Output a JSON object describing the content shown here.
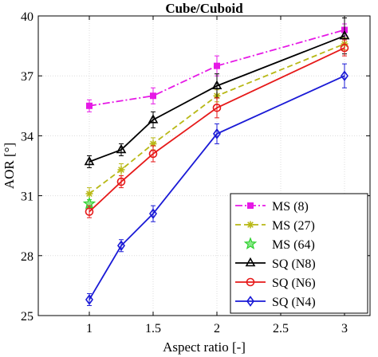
{
  "chart_data": {
    "type": "line",
    "title": "Cube/Cuboid",
    "xlabel": "Aspect ratio [-]",
    "ylabel": "AOR [°]",
    "xlim": [
      0.6,
      3.2
    ],
    "ylim": [
      25,
      40
    ],
    "xticks": [
      1,
      1.5,
      2,
      2.5,
      3
    ],
    "xtick_labels": [
      "1",
      "1.5",
      "2",
      "2.5",
      "3"
    ],
    "yticks": [
      25,
      28,
      31,
      34,
      37,
      40
    ],
    "ytick_labels": [
      "25",
      "28",
      "31",
      "34",
      "37",
      "40"
    ],
    "grid": true,
    "legend_position": "lower-right",
    "series": [
      {
        "name": "MS (8)",
        "color": "#e619e6",
        "dash": "dashdot",
        "marker": "square-filled",
        "x": [
          1,
          1.5,
          2,
          3
        ],
        "y": [
          35.5,
          36.0,
          37.5,
          39.3
        ],
        "err": [
          0.3,
          0.4,
          0.5,
          0.3
        ]
      },
      {
        "name": "MS (27)",
        "color": "#b8b815",
        "dash": "dashed",
        "marker": "asterisk",
        "x": [
          1,
          1.25,
          1.5,
          2,
          3
        ],
        "y": [
          31.1,
          32.3,
          33.6,
          36.0,
          38.6
        ],
        "err": [
          0.3,
          0.3,
          0.3,
          0.3,
          0.3
        ]
      },
      {
        "name": "MS (64)",
        "color": "#2fd12f",
        "dash": "none",
        "marker": "star",
        "x": [
          1
        ],
        "y": [
          30.6
        ],
        "err": [
          0.2
        ]
      },
      {
        "name": "SQ (N8)",
        "color": "#000000",
        "dash": "solid",
        "marker": "triangle",
        "x": [
          1,
          1.25,
          1.5,
          2,
          3
        ],
        "y": [
          32.7,
          33.3,
          34.8,
          36.5,
          39.0
        ],
        "err": [
          0.3,
          0.3,
          0.4,
          0.6,
          0.9
        ]
      },
      {
        "name": "SQ (N6)",
        "color": "#e61919",
        "dash": "solid",
        "marker": "circle",
        "x": [
          1,
          1.25,
          1.5,
          2,
          3
        ],
        "y": [
          30.2,
          31.7,
          33.1,
          35.4,
          38.4
        ],
        "err": [
          0.3,
          0.3,
          0.4,
          0.5,
          0.4
        ]
      },
      {
        "name": "SQ (N4)",
        "color": "#1a1ad6",
        "dash": "solid",
        "marker": "diamond",
        "x": [
          1,
          1.25,
          1.5,
          2,
          3
        ],
        "y": [
          25.8,
          28.5,
          30.1,
          34.1,
          37.0
        ],
        "err": [
          0.3,
          0.3,
          0.4,
          0.5,
          0.6
        ]
      }
    ]
  }
}
